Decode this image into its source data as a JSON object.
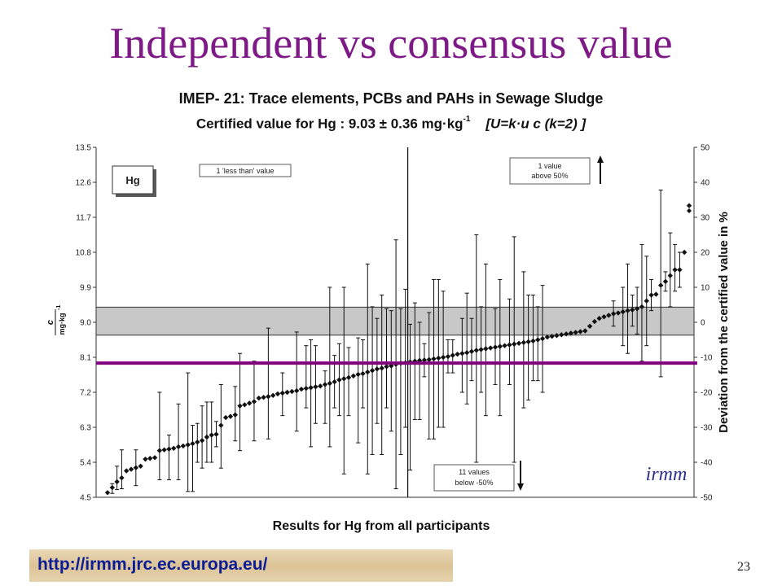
{
  "slide": {
    "title": "Independent vs consensus value",
    "url": "http://irmm.jrc.ec.europa.eu/",
    "page_number": "23",
    "title_color": "#7e1a86",
    "url_color": "#0b1c97"
  },
  "chart_data": {
    "type": "scatter",
    "title": "IMEP- 21: Trace elements, PCBs and PAHs in Sewage Sludge",
    "subtitle": {
      "prefix": "Certified value for Hg : 9.03 ± 0.36 mg·kg",
      "exponent": "-1",
      "bracket": "[U=k·u c (k=2) ]"
    },
    "xlabel": "Results for Hg from all participants",
    "ylabel_left": {
      "numerator": "c",
      "denominator": "mg·kg",
      "exponent": "-1"
    },
    "ylabel_right": "Deviation from the certified value in %",
    "y_left_ticks": [
      "13.5",
      "12.6",
      "11.7",
      "10.8",
      "9.9",
      "9.0",
      "8.1",
      "7.2",
      "6.3",
      "5.4",
      "4.5"
    ],
    "y_right_ticks": [
      "50",
      "40",
      "30",
      "20",
      "10",
      "0",
      "-10",
      "-20",
      "-30",
      "-40",
      "-50"
    ],
    "ylim_left": [
      4.5,
      13.5
    ],
    "ylim_right": [
      -50,
      50
    ],
    "certified_value": 9.03,
    "uncertainty_band": [
      8.67,
      9.39
    ],
    "consensus_line": 7.95,
    "consensus_color": "#800080",
    "split_index": 63,
    "legend_label": "Hg",
    "annotations": {
      "less_than": "1 'less than' value",
      "above": [
        "1 value",
        "above 50%"
      ],
      "below": [
        "11 values",
        "below -50%"
      ]
    },
    "logo_text": "irmm",
    "points": [
      {
        "v": 4.62,
        "lo": 4.55,
        "hi": 4.62
      },
      {
        "v": 4.75,
        "lo": 4.6,
        "hi": 4.85
      },
      {
        "v": 4.9,
        "lo": 4.7,
        "hi": 5.3
      },
      {
        "v": 5.0,
        "lo": 4.72,
        "hi": 5.72
      },
      {
        "v": 5.18,
        "lo": 5.1,
        "hi": 5.28
      },
      {
        "v": 5.22,
        "lo": 5.18,
        "hi": 5.28
      },
      {
        "v": 5.26,
        "lo": 4.8,
        "hi": 5.72
      },
      {
        "v": 5.3,
        "lo": 5.25,
        "hi": 5.35
      },
      {
        "v": 5.48,
        "lo": 5.42,
        "hi": 5.55
      },
      {
        "v": 5.5,
        "lo": 5.45,
        "hi": 5.55
      },
      {
        "v": 5.52,
        "lo": 5.47,
        "hi": 5.56
      },
      {
        "v": 5.7,
        "lo": 4.95,
        "hi": 7.2
      },
      {
        "v": 5.72,
        "lo": 5.66,
        "hi": 5.78
      },
      {
        "v": 5.74,
        "lo": 4.95,
        "hi": 6.1
      },
      {
        "v": 5.76,
        "lo": 5.7,
        "hi": 5.82
      },
      {
        "v": 5.8,
        "lo": 4.95,
        "hi": 6.9
      },
      {
        "v": 5.82,
        "lo": 5.78,
        "hi": 5.88
      },
      {
        "v": 5.85,
        "lo": 4.65,
        "hi": 7.7
      },
      {
        "v": 5.88,
        "lo": 4.65,
        "hi": 6.35
      },
      {
        "v": 5.92,
        "lo": 5.4,
        "hi": 6.4
      },
      {
        "v": 5.96,
        "lo": 5.25,
        "hi": 6.85
      },
      {
        "v": 6.05,
        "lo": 5.4,
        "hi": 6.95
      },
      {
        "v": 6.1,
        "lo": 5.4,
        "hi": 6.95
      },
      {
        "v": 6.12,
        "lo": 5.8,
        "hi": 6.45
      },
      {
        "v": 6.35,
        "lo": 5.25,
        "hi": 7.4
      },
      {
        "v": 6.55,
        "lo": 6.5,
        "hi": 6.6
      },
      {
        "v": 6.58,
        "lo": 6.52,
        "hi": 6.64
      },
      {
        "v": 6.62,
        "lo": 5.95,
        "hi": 7.35
      },
      {
        "v": 6.85,
        "lo": 5.7,
        "hi": 8.2
      },
      {
        "v": 6.88,
        "lo": 6.82,
        "hi": 6.94
      },
      {
        "v": 6.92,
        "lo": 6.86,
        "hi": 6.98
      },
      {
        "v": 6.96,
        "lo": 5.95,
        "hi": 8.0
      },
      {
        "v": 7.05,
        "lo": 6.98,
        "hi": 7.12
      },
      {
        "v": 7.07,
        "lo": 7.0,
        "hi": 7.14
      },
      {
        "v": 7.09,
        "lo": 6.0,
        "hi": 8.85
      },
      {
        "v": 7.12,
        "lo": 7.05,
        "hi": 7.19
      },
      {
        "v": 7.16,
        "lo": 7.1,
        "hi": 7.22
      },
      {
        "v": 7.18,
        "lo": 6.6,
        "hi": 7.7
      },
      {
        "v": 7.2,
        "lo": 7.12,
        "hi": 7.28
      },
      {
        "v": 7.22,
        "lo": 7.15,
        "hi": 7.28
      },
      {
        "v": 7.24,
        "lo": 6.2,
        "hi": 8.75
      },
      {
        "v": 7.28,
        "lo": 7.2,
        "hi": 7.35
      },
      {
        "v": 7.3,
        "lo": 6.8,
        "hi": 8.4
      },
      {
        "v": 7.32,
        "lo": 5.8,
        "hi": 8.55
      },
      {
        "v": 7.34,
        "lo": 6.4,
        "hi": 8.4
      },
      {
        "v": 7.36,
        "lo": 7.28,
        "hi": 7.42
      },
      {
        "v": 7.4,
        "lo": 6.4,
        "hi": 7.75
      },
      {
        "v": 7.43,
        "lo": 5.8,
        "hi": 9.9
      },
      {
        "v": 7.47,
        "lo": 6.8,
        "hi": 8.15
      },
      {
        "v": 7.52,
        "lo": 6.6,
        "hi": 8.45
      },
      {
        "v": 7.55,
        "lo": 5.1,
        "hi": 9.9
      },
      {
        "v": 7.58,
        "lo": 6.6,
        "hi": 8.35
      },
      {
        "v": 7.62,
        "lo": 7.55,
        "hi": 7.7
      },
      {
        "v": 7.66,
        "lo": 5.9,
        "hi": 8.6
      },
      {
        "v": 7.68,
        "lo": 6.8,
        "hi": 8.55
      },
      {
        "v": 7.72,
        "lo": 5.1,
        "hi": 10.5
      },
      {
        "v": 7.76,
        "lo": 5.6,
        "hi": 9.4
      },
      {
        "v": 7.8,
        "lo": 6.4,
        "hi": 9.1
      },
      {
        "v": 7.82,
        "lo": 5.6,
        "hi": 9.7
      },
      {
        "v": 7.86,
        "lo": 6.8,
        "hi": 9.35
      },
      {
        "v": 7.88,
        "lo": 6.2,
        "hi": 9.3
      },
      {
        "v": 7.92,
        "lo": 4.72,
        "hi": 11.12
      },
      {
        "v": 7.95,
        "lo": 5.6,
        "hi": 9.35
      },
      {
        "v": 7.96,
        "lo": 6.3,
        "hi": 9.85
      },
      {
        "v": 7.98,
        "lo": 5.2,
        "hi": 8.95
      },
      {
        "v": 8.0,
        "lo": 6.5,
        "hi": 9.5
      },
      {
        "v": 8.02,
        "lo": 6.5,
        "hi": 9.0
      },
      {
        "v": 8.03,
        "lo": 7.6,
        "hi": 8.45
      },
      {
        "v": 8.04,
        "lo": 6.0,
        "hi": 9.25
      },
      {
        "v": 8.06,
        "lo": 6.0,
        "hi": 10.1
      },
      {
        "v": 8.08,
        "lo": 6.3,
        "hi": 10.1
      },
      {
        "v": 8.1,
        "lo": 6.3,
        "hi": 9.8
      },
      {
        "v": 8.12,
        "lo": 7.7,
        "hi": 8.55
      },
      {
        "v": 8.15,
        "lo": 7.7,
        "hi": 8.55
      },
      {
        "v": 8.18,
        "lo": 8.1,
        "hi": 8.26
      },
      {
        "v": 8.2,
        "lo": 7.2,
        "hi": 9.1
      },
      {
        "v": 8.22,
        "lo": 6.9,
        "hi": 9.75
      },
      {
        "v": 8.25,
        "lo": 7.5,
        "hi": 9.1
      },
      {
        "v": 8.28,
        "lo": 5.4,
        "hi": 11.25
      },
      {
        "v": 8.3,
        "lo": 7.2,
        "hi": 9.4
      },
      {
        "v": 8.32,
        "lo": 6.6,
        "hi": 10.5
      },
      {
        "v": 8.34,
        "lo": 8.26,
        "hi": 8.42
      },
      {
        "v": 8.36,
        "lo": 7.4,
        "hi": 9.35
      },
      {
        "v": 8.38,
        "lo": 6.6,
        "hi": 10.1
      },
      {
        "v": 8.4,
        "lo": 8.32,
        "hi": 8.48
      },
      {
        "v": 8.42,
        "lo": 7.4,
        "hi": 9.6
      },
      {
        "v": 8.44,
        "lo": 5.4,
        "hi": 11.2
      },
      {
        "v": 8.46,
        "lo": 8.38,
        "hi": 8.54
      },
      {
        "v": 8.48,
        "lo": 6.8,
        "hi": 10.3
      },
      {
        "v": 8.5,
        "lo": 7.0,
        "hi": 9.7
      },
      {
        "v": 8.52,
        "lo": 7.5,
        "hi": 9.7
      },
      {
        "v": 8.55,
        "lo": 7.5,
        "hi": 9.4
      },
      {
        "v": 8.58,
        "lo": 7.2,
        "hi": 9.95
      },
      {
        "v": 8.62,
        "lo": 8.54,
        "hi": 8.7
      },
      {
        "v": 8.64,
        "lo": 8.56,
        "hi": 8.72
      },
      {
        "v": 8.66,
        "lo": 8.58,
        "hi": 8.74
      },
      {
        "v": 8.68,
        "lo": 8.6,
        "hi": 8.76
      },
      {
        "v": 8.7,
        "lo": 8.62,
        "hi": 8.78
      },
      {
        "v": 8.72,
        "lo": 8.64,
        "hi": 8.8
      },
      {
        "v": 8.74,
        "lo": 8.66,
        "hi": 8.82
      },
      {
        "v": 8.76,
        "lo": 8.68,
        "hi": 8.84
      },
      {
        "v": 8.78,
        "lo": 8.7,
        "hi": 8.86
      },
      {
        "v": 8.9,
        "lo": 8.82,
        "hi": 8.98
      },
      {
        "v": 9.02,
        "lo": 8.94,
        "hi": 9.1
      },
      {
        "v": 9.1,
        "lo": 9.02,
        "hi": 9.18
      },
      {
        "v": 9.14,
        "lo": 9.06,
        "hi": 9.22
      },
      {
        "v": 9.18,
        "lo": 9.1,
        "hi": 9.26
      },
      {
        "v": 9.22,
        "lo": 8.9,
        "hi": 9.55
      },
      {
        "v": 9.24,
        "lo": 9.16,
        "hi": 9.32
      },
      {
        "v": 9.27,
        "lo": 8.4,
        "hi": 9.9
      },
      {
        "v": 9.3,
        "lo": 8.2,
        "hi": 10.5
      },
      {
        "v": 9.32,
        "lo": 8.9,
        "hi": 9.7
      },
      {
        "v": 9.35,
        "lo": 8.7,
        "hi": 9.9
      },
      {
        "v": 9.4,
        "lo": 8.0,
        "hi": 11.0
      },
      {
        "v": 9.55,
        "lo": 8.4,
        "hi": 10.7
      },
      {
        "v": 9.7,
        "lo": 9.3,
        "hi": 10.1
      },
      {
        "v": 9.72,
        "lo": 9.64,
        "hi": 9.8
      },
      {
        "v": 9.95,
        "lo": 7.6,
        "hi": 12.4
      },
      {
        "v": 10.05,
        "lo": 9.8,
        "hi": 10.3
      },
      {
        "v": 10.2,
        "lo": 9.4,
        "hi": 11.3
      },
      {
        "v": 10.35,
        "lo": 9.8,
        "hi": 11.0
      },
      {
        "v": 10.35,
        "lo": 9.9,
        "hi": 10.8
      },
      {
        "v": 10.8,
        "lo": 10.8,
        "hi": 10.8
      },
      {
        "v": 12.0,
        "lo": 12.0,
        "hi": 12.0
      }
    ]
  }
}
